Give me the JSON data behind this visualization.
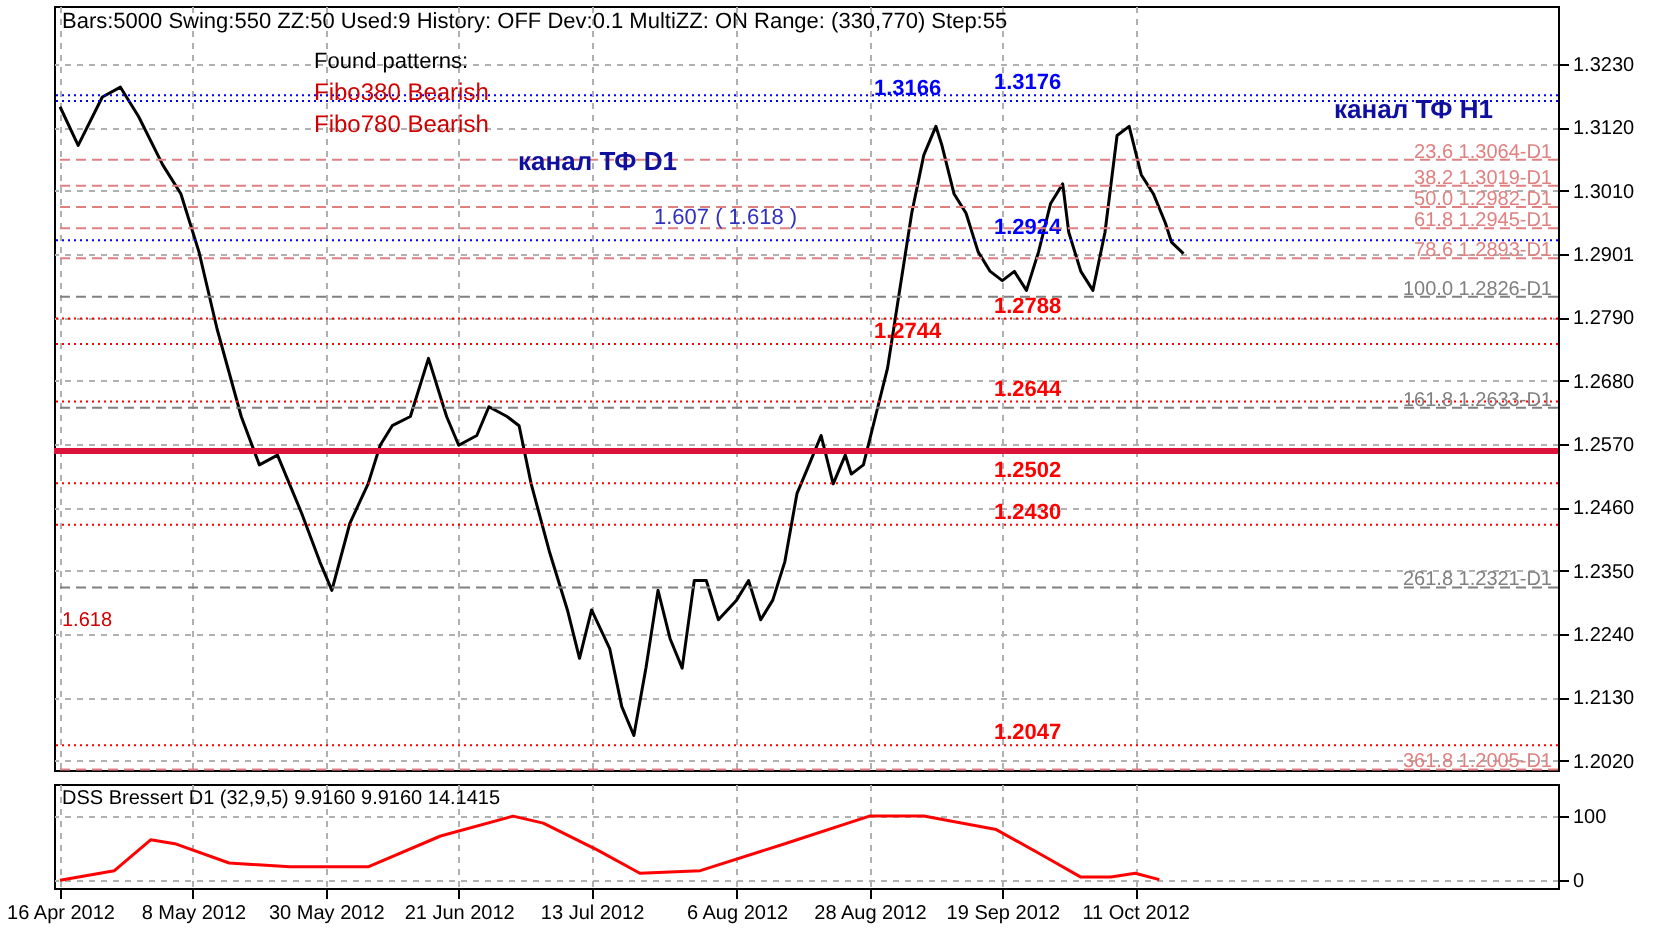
{
  "chart_data": [
    {
      "type": "line",
      "title": "Bars:5000  Swing:550  ZZ:50  Used:9  History: OFF  Dev:0.1  MultiZZ: ON  Range: (330,770)  Step:55",
      "annotations": [
        "Found patterns:",
        "Fibo380 Bearish",
        "Fibo780 Bearish",
        "канал ТФ D1",
        "канал ТФ H1",
        "1.607 ( 1.618 )",
        "1.618"
      ],
      "x": [
        "2012-04-16",
        "2012-04-19",
        "2012-04-23",
        "2012-04-26",
        "2012-04-29",
        "2012-05-03",
        "2012-05-06",
        "2012-05-09",
        "2012-05-12",
        "2012-05-16",
        "2012-05-19",
        "2012-05-22",
        "2012-05-26",
        "2012-05-29",
        "2012-05-31",
        "2012-06-03",
        "2012-06-06",
        "2012-06-08",
        "2012-06-10",
        "2012-06-13",
        "2012-06-16",
        "2012-06-19",
        "2012-06-21",
        "2012-06-24",
        "2012-06-26",
        "2012-06-29",
        "2012-07-01",
        "2012-07-03",
        "2012-07-06",
        "2012-07-09",
        "2012-07-11",
        "2012-07-13",
        "2012-07-16",
        "2012-07-18",
        "2012-07-20",
        "2012-07-22",
        "2012-07-24",
        "2012-07-26",
        "2012-07-28",
        "2012-07-30",
        "2012-08-01",
        "2012-08-03",
        "2012-08-06",
        "2012-08-08",
        "2012-08-10",
        "2012-08-12",
        "2012-08-14",
        "2012-08-16",
        "2012-08-18",
        "2012-08-20",
        "2012-08-22",
        "2012-08-24",
        "2012-08-25",
        "2012-08-27",
        "2012-08-29",
        "2012-08-31",
        "2012-09-02",
        "2012-09-04",
        "2012-09-06",
        "2012-09-08",
        "2012-09-09",
        "2012-09-11",
        "2012-09-13",
        "2012-09-15",
        "2012-09-17",
        "2012-09-19",
        "2012-09-21",
        "2012-09-23",
        "2012-09-25",
        "2012-09-27",
        "2012-09-29",
        "2012-09-30",
        "2012-10-02",
        "2012-10-04",
        "2012-10-06",
        "2012-10-08",
        "2012-10-10",
        "2012-10-12",
        "2012-10-14",
        "2012-10-16",
        "2012-10-17",
        "2012-10-19"
      ],
      "series": [
        {
          "color": "#000000",
          "values": [
            1.3156,
            1.3089,
            1.3173,
            1.319,
            1.3139,
            1.3055,
            1.3005,
            1.2904,
            1.277,
            1.2618,
            1.2534,
            1.2551,
            1.245,
            1.2366,
            1.2316,
            1.2433,
            1.2501,
            1.2568,
            1.2602,
            1.2618,
            1.2719,
            1.2618,
            1.2568,
            1.2585,
            1.2635,
            1.2618,
            1.2602,
            1.2501,
            1.2384,
            1.2282,
            1.2198,
            1.2282,
            1.2215,
            1.2114,
            1.2064,
            1.2181,
            1.2316,
            1.2232,
            1.2181,
            1.2333,
            1.2333,
            1.2265,
            1.2299,
            1.2333,
            1.2265,
            1.2299,
            1.2366,
            1.2484,
            1.2534,
            1.2585,
            1.2501,
            1.2551,
            1.2518,
            1.2534,
            1.2618,
            1.2702,
            1.2837,
            1.2971,
            1.3072,
            1.3122,
            1.3089,
            1.3005,
            1.2971,
            1.2904,
            1.287,
            1.2854,
            1.287,
            1.2837,
            1.2904,
            1.2988,
            1.3022,
            1.2938,
            1.287,
            1.2837,
            1.2938,
            1.3106,
            1.3122,
            1.3038,
            1.3005,
            1.2954,
            1.2921,
            1.2901
          ]
        }
      ],
      "xlim": [
        "2012-04-15",
        "2012-12-20"
      ],
      "xticks": [
        {
          "value": "2012-04-16",
          "label": null
        },
        {
          "value": "2012-05-08",
          "label": null
        },
        {
          "value": "2012-05-30",
          "label": null
        },
        {
          "value": "2012-06-21",
          "label": null
        },
        {
          "value": "2012-07-13",
          "label": null
        },
        {
          "value": "2012-08-06",
          "label": null
        },
        {
          "value": "2012-08-28",
          "label": null
        },
        {
          "value": "2012-09-19",
          "label": null
        },
        {
          "value": "2012-10-11",
          "label": null
        }
      ],
      "ylim": [
        1.2004,
        1.3331
      ],
      "yticks": [
        {
          "value": 1.323,
          "label": "1.3230"
        },
        {
          "value": 1.312,
          "label": "1.3120"
        },
        {
          "value": 1.301,
          "label": "1.3010"
        },
        {
          "value": 1.2901,
          "label": "1.2901"
        },
        {
          "value": 1.279,
          "label": "1.2790"
        },
        {
          "value": 1.268,
          "label": "1.2680"
        },
        {
          "value": 1.257,
          "label": "1.2570"
        },
        {
          "value": 1.246,
          "label": "1.2460"
        },
        {
          "value": 1.235,
          "label": "1.2350"
        },
        {
          "value": 1.224,
          "label": "1.2240"
        },
        {
          "value": 1.213,
          "label": "1.2130"
        },
        {
          "value": 1.202,
          "label": "1.2020"
        }
      ],
      "grid": true,
      "tick_labels": "y",
      "ref_lines": [
        {
          "axis": "y",
          "value": 1.3176,
          "label": "1.3176",
          "color": "#0000ff",
          "line_style": "dotted"
        },
        {
          "axis": "y",
          "value": 1.3166,
          "label": "1.3166",
          "color": "#0000ff",
          "line_style": "dotted"
        },
        {
          "axis": "y",
          "value": 1.2924,
          "label": "1.2924",
          "color": "#0000ff",
          "line_style": "dotted"
        },
        {
          "axis": "y",
          "value": 1.2788,
          "label": "1.2788",
          "color": "#ff0000",
          "line_style": "dotted"
        },
        {
          "axis": "y",
          "value": 1.2744,
          "label": "1.2744",
          "color": "#ff0000",
          "line_style": "dotted"
        },
        {
          "axis": "y",
          "value": 1.2644,
          "label": "1.2644",
          "color": "#ff0000",
          "line_style": "dotted"
        },
        {
          "axis": "y",
          "value": 1.2502,
          "label": "1.2502",
          "color": "#ff0000",
          "line_style": "dotted"
        },
        {
          "axis": "y",
          "value": 1.243,
          "label": "1.2430",
          "color": "#ff0000",
          "line_style": "dotted"
        },
        {
          "axis": "y",
          "value": 1.2047,
          "label": "1.2047",
          "color": "#ff0000",
          "line_style": "dotted"
        },
        {
          "axis": "y",
          "value": 1.3064,
          "label": "23.6 1.3064-D1",
          "color": "#e08080",
          "line_style": "dashed"
        },
        {
          "axis": "y",
          "value": 1.3019,
          "label": "38.2 1.3019-D1",
          "color": "#e08080",
          "line_style": "dashed"
        },
        {
          "axis": "y",
          "value": 1.2982,
          "label": "50.0 1.2982-D1",
          "color": "#e08080",
          "line_style": "dashed"
        },
        {
          "axis": "y",
          "value": 1.2945,
          "label": "61.8 1.2945-D1",
          "color": "#e08080",
          "line_style": "dashed"
        },
        {
          "axis": "y",
          "value": 1.2893,
          "label": "78.6 1.2893-D1",
          "color": "#e08080",
          "line_style": "dashed"
        },
        {
          "axis": "y",
          "value": 1.2826,
          "label": "100.0 1.2826-D1",
          "color": "#808080",
          "line_style": "dashed"
        },
        {
          "axis": "y",
          "value": 1.2633,
          "label": "161.8 1.2633-D1",
          "color": "#808080",
          "line_style": "dashed"
        },
        {
          "axis": "y",
          "value": 1.2321,
          "label": "261.8 1.2321-D1",
          "color": "#808080",
          "line_style": "dashed"
        },
        {
          "axis": "y",
          "value": 1.2005,
          "label": "361.8 1.2005-D1",
          "color": "#e08080",
          "line_style": "dashed"
        },
        {
          "axis": "y",
          "value": 1.2558,
          "color": "#dc143c",
          "line_style": "solid"
        }
      ]
    },
    {
      "type": "line",
      "title": "DSS Bressert D1 (32,9,5) 9.9160 9.9160 14.1415",
      "x": [
        "2012-04-16",
        "2012-04-25",
        "2012-05-01",
        "2012-05-05",
        "2012-05-14",
        "2012-05-24",
        "2012-06-06",
        "2012-06-18",
        "2012-06-30",
        "2012-07-05",
        "2012-07-14",
        "2012-07-21",
        "2012-07-31",
        "2012-08-14",
        "2012-08-28",
        "2012-09-06",
        "2012-09-18",
        "2012-09-26",
        "2012-10-02",
        "2012-10-07",
        "2012-10-11",
        "2012-10-15"
      ],
      "series": [
        {
          "color": "#ff0000",
          "values": [
            0,
            15,
            63,
            57,
            27,
            21,
            21,
            69,
            100,
            89,
            47,
            11,
            15,
            57,
            100,
            100,
            79,
            37,
            5,
            5,
            11,
            1
          ]
        }
      ],
      "xlim": [
        "2012-04-15",
        "2012-12-20"
      ],
      "xticks": [
        {
          "value": "2012-04-16",
          "label": "16 Apr 2012"
        },
        {
          "value": "2012-05-08",
          "label": "8 May 2012"
        },
        {
          "value": "2012-05-30",
          "label": "30 May 2012"
        },
        {
          "value": "2012-06-21",
          "label": "21 Jun 2012"
        },
        {
          "value": "2012-07-13",
          "label": "13 Jul 2012"
        },
        {
          "value": "2012-08-06",
          "label": "6 Aug 2012"
        },
        {
          "value": "2012-08-28",
          "label": "28 Aug 2012"
        },
        {
          "value": "2012-09-19",
          "label": "19 Sep 2012"
        },
        {
          "value": "2012-10-11",
          "label": "11 Oct 2012"
        }
      ],
      "ylim": [
        -12,
        150
      ],
      "yticks": [
        0,
        100
      ],
      "grid": true
    }
  ]
}
